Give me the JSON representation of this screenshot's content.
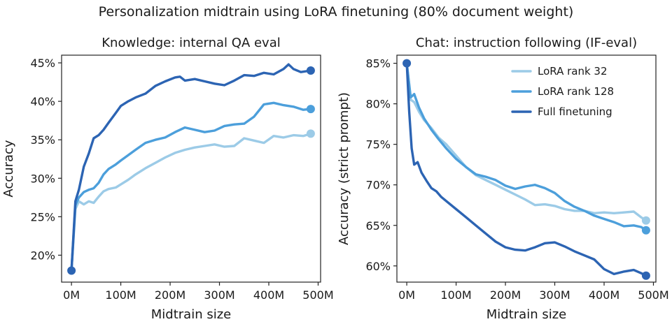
{
  "figure_title": "Personalization midtrain using LoRA finetuning (80% document weight)",
  "colors": {
    "lora32": "#9ccbe7",
    "lora128": "#4c9fdb",
    "full": "#2c64b3"
  },
  "chart_data": [
    {
      "type": "line",
      "title": "Knowledge: internal QA eval",
      "xlabel": "Midtrain size",
      "ylabel": "Accuracy",
      "xlim": [
        -20,
        505
      ],
      "ylim": [
        16.5,
        46
      ],
      "x_ticks": [
        0,
        100,
        200,
        300,
        400,
        500
      ],
      "x_tick_labels": [
        "0M",
        "100M",
        "200M",
        "300M",
        "400M",
        "500M"
      ],
      "y_ticks": [
        20,
        25,
        30,
        35,
        40,
        45
      ],
      "y_tick_labels": [
        "20%",
        "25%",
        "30%",
        "35%",
        "40%",
        "45%"
      ],
      "series": [
        {
          "name": "LoRA rank 32",
          "color_key": "lora32",
          "x": [
            0,
            8,
            15,
            25,
            35,
            45,
            55,
            65,
            75,
            90,
            100,
            115,
            130,
            150,
            170,
            190,
            210,
            230,
            250,
            270,
            290,
            310,
            330,
            350,
            370,
            390,
            410,
            430,
            450,
            470,
            485
          ],
          "y": [
            18.0,
            26.0,
            27.0,
            26.6,
            27.0,
            26.8,
            27.6,
            28.3,
            28.6,
            28.8,
            29.2,
            29.8,
            30.5,
            31.3,
            32.0,
            32.7,
            33.3,
            33.7,
            34.0,
            34.2,
            34.4,
            34.1,
            34.2,
            35.2,
            34.9,
            34.6,
            35.5,
            35.3,
            35.6,
            35.5,
            35.8
          ],
          "end_marker": true
        },
        {
          "name": "LoRA rank 128",
          "color_key": "lora128",
          "x": [
            0,
            8,
            15,
            25,
            35,
            45,
            55,
            65,
            75,
            90,
            100,
            115,
            130,
            150,
            170,
            190,
            210,
            230,
            250,
            270,
            290,
            310,
            330,
            350,
            370,
            390,
            410,
            430,
            450,
            470,
            485
          ],
          "y": [
            18.0,
            26.5,
            27.5,
            28.2,
            28.5,
            28.7,
            29.4,
            30.5,
            31.2,
            31.8,
            32.3,
            33.0,
            33.7,
            34.6,
            35.0,
            35.3,
            36.0,
            36.6,
            36.3,
            36.0,
            36.2,
            36.8,
            37.0,
            37.1,
            38.0,
            39.6,
            39.8,
            39.5,
            39.3,
            38.9,
            39.0
          ],
          "end_marker": true
        },
        {
          "name": "Full finetuning",
          "color_key": "full",
          "x": [
            0,
            8,
            15,
            25,
            35,
            45,
            55,
            65,
            75,
            90,
            100,
            115,
            130,
            150,
            170,
            190,
            210,
            220,
            230,
            250,
            270,
            290,
            310,
            330,
            350,
            370,
            390,
            410,
            430,
            440,
            450,
            465,
            485
          ],
          "y": [
            18.0,
            27.0,
            28.5,
            31.5,
            33.2,
            35.2,
            35.6,
            36.3,
            37.2,
            38.5,
            39.4,
            40.0,
            40.5,
            41.0,
            42.0,
            42.6,
            43.1,
            43.2,
            42.7,
            42.9,
            42.6,
            42.3,
            42.1,
            42.7,
            43.4,
            43.3,
            43.7,
            43.5,
            44.2,
            44.8,
            44.2,
            43.8,
            44.0
          ],
          "end_marker": true
        }
      ]
    },
    {
      "type": "line",
      "title": "Chat: instruction following (IF-eval)",
      "xlabel": "Midtrain size",
      "ylabel": "Accuracy (strict prompt)",
      "xlim": [
        -20,
        505
      ],
      "ylim": [
        58,
        86
      ],
      "x_ticks": [
        0,
        100,
        200,
        300,
        400,
        500
      ],
      "x_tick_labels": [
        "0M",
        "100M",
        "200M",
        "300M",
        "400M",
        "500M"
      ],
      "y_ticks": [
        60,
        65,
        70,
        75,
        80,
        85
      ],
      "y_tick_labels": [
        "60%",
        "65%",
        "70%",
        "75%",
        "80%",
        "85%"
      ],
      "legend": "top-right",
      "series": [
        {
          "name": "LoRA rank 32",
          "color_key": "lora32",
          "x": [
            0,
            8,
            15,
            25,
            35,
            50,
            65,
            80,
            100,
            120,
            140,
            160,
            180,
            200,
            220,
            240,
            260,
            280,
            300,
            320,
            340,
            360,
            380,
            400,
            420,
            440,
            460,
            475,
            485
          ],
          "y": [
            85.0,
            80.5,
            80.2,
            79.0,
            78.0,
            77.0,
            75.8,
            75.0,
            73.6,
            72.2,
            71.2,
            70.6,
            70.0,
            69.4,
            68.8,
            68.2,
            67.5,
            67.6,
            67.4,
            67.0,
            66.8,
            66.8,
            66.5,
            66.6,
            66.5,
            66.6,
            66.7,
            66.0,
            65.6
          ],
          "end_marker": true
        },
        {
          "name": "LoRA rank 128",
          "color_key": "lora128",
          "x": [
            0,
            8,
            15,
            25,
            35,
            50,
            65,
            80,
            100,
            120,
            140,
            160,
            180,
            200,
            220,
            240,
            260,
            280,
            300,
            320,
            340,
            360,
            380,
            400,
            420,
            440,
            460,
            475,
            485
          ],
          "y": [
            85.0,
            80.8,
            81.2,
            79.5,
            78.2,
            76.8,
            75.6,
            74.5,
            73.2,
            72.2,
            71.3,
            71.0,
            70.6,
            69.9,
            69.5,
            69.8,
            70.0,
            69.6,
            69.0,
            68.0,
            67.3,
            66.8,
            66.2,
            65.8,
            65.4,
            64.9,
            65.0,
            64.8,
            64.4
          ],
          "end_marker": true
        },
        {
          "name": "Full finetuning",
          "color_key": "full",
          "x": [
            0,
            5,
            10,
            15,
            22,
            30,
            40,
            50,
            60,
            70,
            80,
            100,
            120,
            140,
            160,
            180,
            200,
            220,
            240,
            260,
            280,
            300,
            320,
            340,
            360,
            380,
            400,
            420,
            440,
            460,
            475,
            485
          ],
          "y": [
            85.0,
            79.0,
            74.5,
            72.5,
            72.8,
            71.5,
            70.5,
            69.6,
            69.2,
            68.5,
            68.0,
            67.0,
            66.0,
            65.0,
            64.0,
            63.0,
            62.3,
            62.0,
            61.9,
            62.3,
            62.8,
            62.9,
            62.4,
            61.8,
            61.3,
            60.8,
            59.6,
            59.0,
            59.3,
            59.5,
            59.1,
            58.8
          ],
          "end_marker": true
        }
      ]
    }
  ]
}
